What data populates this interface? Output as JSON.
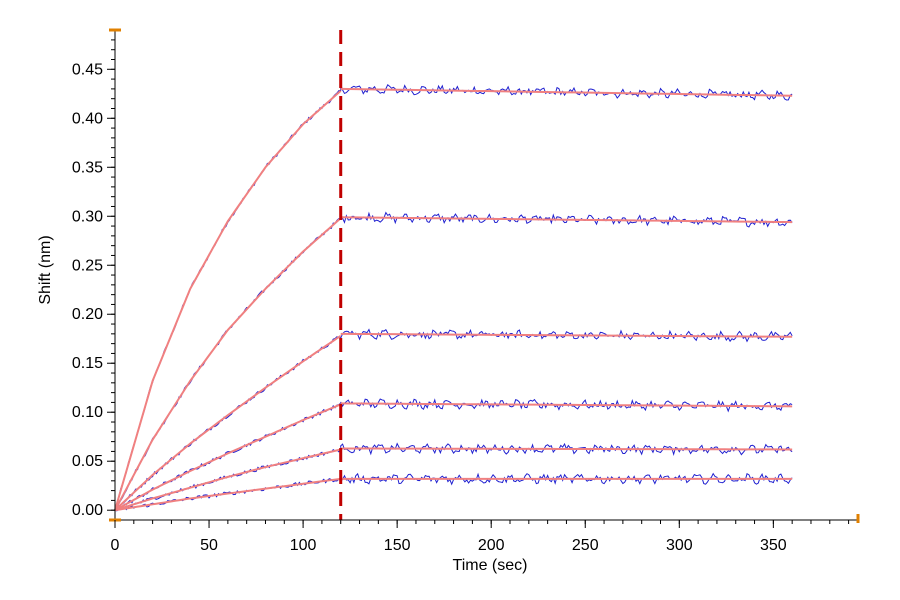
{
  "chart_data": {
    "type": "line",
    "title": "",
    "xlabel": "Time (sec)",
    "ylabel": "Shift (nm)",
    "xlim": [
      0,
      395
    ],
    "ylim": [
      -0.01,
      0.485
    ],
    "x_ticks": [
      0,
      50,
      100,
      150,
      200,
      250,
      300,
      350
    ],
    "y_ticks": [
      0.0,
      0.05,
      0.1,
      0.15,
      0.2,
      0.25,
      0.3,
      0.35,
      0.4,
      0.45
    ],
    "x_tick_labels": [
      "0",
      "50",
      "100",
      "150",
      "200",
      "250",
      "300",
      "350"
    ],
    "y_tick_labels": [
      "0.00",
      "0.05",
      "0.10",
      "0.15",
      "0.20",
      "0.25",
      "0.30",
      "0.35",
      "0.40",
      "0.45"
    ],
    "association_end_sec": 120,
    "dissociation_end_sec": 360,
    "grid": false,
    "colors": {
      "data": "#2020d0",
      "fit": "#f08080",
      "marker": "#c00000",
      "axis_end": "#e08000"
    },
    "series": [
      {
        "association": {
          "x": [
            0,
            20,
            40,
            60,
            80,
            100,
            120
          ],
          "y": [
            0.0,
            0.132,
            0.226,
            0.295,
            0.35,
            0.394,
            0.428
          ]
        },
        "dissociation": {
          "x": [
            120,
            360
          ],
          "y": [
            0.43,
            0.423
          ]
        }
      },
      {
        "association": {
          "x": [
            0,
            20,
            40,
            60,
            80,
            100,
            120
          ],
          "y": [
            0.0,
            0.072,
            0.132,
            0.184,
            0.226,
            0.264,
            0.298
          ]
        },
        "dissociation": {
          "x": [
            120,
            360
          ],
          "y": [
            0.299,
            0.294
          ]
        }
      },
      {
        "association": {
          "x": [
            0,
            20,
            40,
            60,
            80,
            100,
            120
          ],
          "y": [
            0.0,
            0.036,
            0.068,
            0.097,
            0.125,
            0.152,
            0.178
          ]
        },
        "dissociation": {
          "x": [
            120,
            360
          ],
          "y": [
            0.18,
            0.177
          ]
        }
      },
      {
        "association": {
          "x": [
            0,
            20,
            40,
            60,
            80,
            100,
            120
          ],
          "y": [
            0.0,
            0.021,
            0.04,
            0.058,
            0.075,
            0.092,
            0.108
          ]
        },
        "dissociation": {
          "x": [
            120,
            360
          ],
          "y": [
            0.109,
            0.106
          ]
        }
      },
      {
        "association": {
          "x": [
            0,
            20,
            40,
            60,
            80,
            100,
            120
          ],
          "y": [
            0.0,
            0.012,
            0.023,
            0.034,
            0.044,
            0.053,
            0.062
          ]
        },
        "dissociation": {
          "x": [
            120,
            360
          ],
          "y": [
            0.063,
            0.062
          ]
        }
      },
      {
        "association": {
          "x": [
            0,
            20,
            40,
            60,
            80,
            100,
            120
          ],
          "y": [
            0.0,
            0.006,
            0.012,
            0.017,
            0.022,
            0.027,
            0.032
          ]
        },
        "dissociation": {
          "x": [
            120,
            360
          ],
          "y": [
            0.032,
            0.032
          ]
        }
      }
    ]
  }
}
